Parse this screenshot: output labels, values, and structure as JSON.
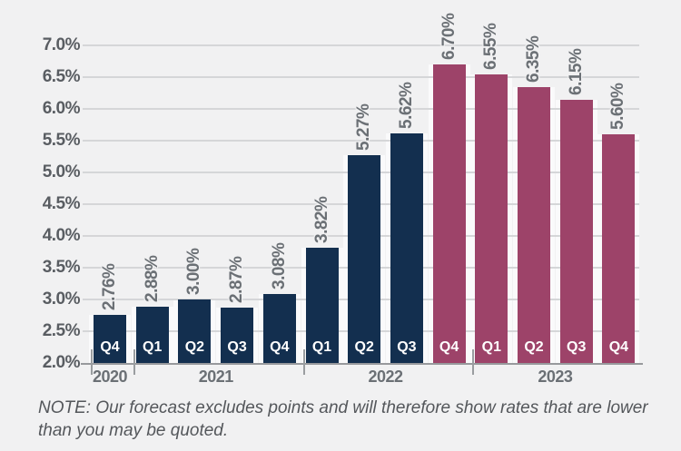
{
  "chart_data": {
    "type": "bar",
    "title": "",
    "xlabel": "",
    "ylabel": "",
    "categories": [
      "Q4",
      "Q1",
      "Q2",
      "Q3",
      "Q4",
      "Q1",
      "Q2",
      "Q3",
      "Q4",
      "Q1",
      "Q2",
      "Q3",
      "Q4"
    ],
    "values": [
      2.76,
      2.88,
      3.0,
      2.87,
      3.08,
      3.82,
      5.27,
      5.62,
      6.7,
      6.55,
      6.35,
      6.15,
      5.6
    ],
    "value_labels": [
      "2.76%",
      "2.88%",
      "3.00%",
      "2.87%",
      "3.08%",
      "3.82%",
      "5.27%",
      "5.62%",
      "6.70%",
      "6.55%",
      "6.35%",
      "6.15%",
      "5.60%"
    ],
    "series_key": [
      "actual",
      "actual",
      "actual",
      "actual",
      "actual",
      "actual",
      "actual",
      "actual",
      "forecast",
      "forecast",
      "forecast",
      "forecast",
      "forecast"
    ],
    "colors": {
      "actual": "#132f4f",
      "forecast": "#9d4369"
    },
    "year_groups": [
      {
        "label": "2020",
        "start": 0,
        "span": 1
      },
      {
        "label": "2021",
        "start": 1,
        "span": 4
      },
      {
        "label": "2022",
        "start": 5,
        "span": 4
      },
      {
        "label": "2023",
        "start": 9,
        "span": 4
      }
    ],
    "ylim": [
      2.0,
      7.0
    ],
    "ytick_step": 0.5,
    "ytick_labels": [
      "2.0%",
      "2.5%",
      "3.0%",
      "3.5%",
      "4.0%",
      "4.5%",
      "5.0%",
      "5.5%",
      "6.0%",
      "6.5%",
      "7.0%"
    ],
    "grid": true,
    "legend_position": "none",
    "background_color": "#f1f1f2",
    "gridline_color": "#d5d6d8",
    "axis_color": "#97999c"
  },
  "note": {
    "line1": "NOTE: Our forecast excludes points and will therefore show rates that are lower",
    "line2": "than you may be quoted."
  }
}
